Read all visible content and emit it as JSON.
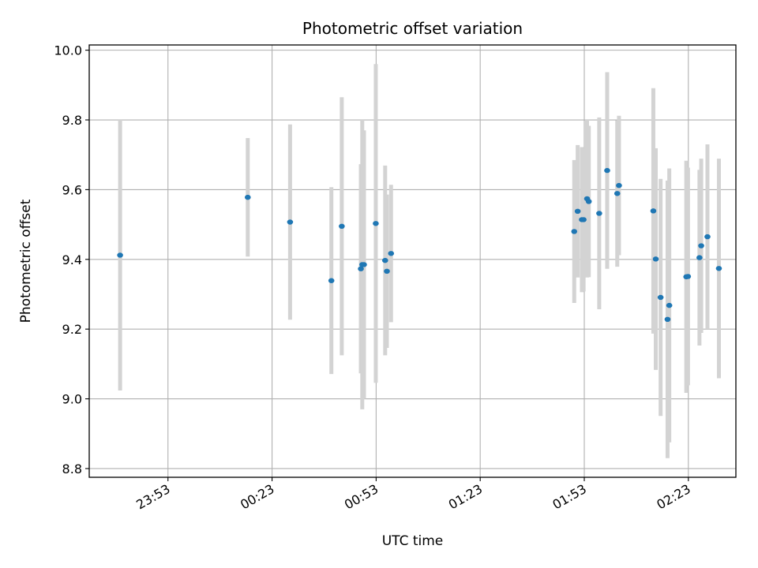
{
  "chart_data": {
    "type": "scatter",
    "title": "Photometric offset variation",
    "xlabel": "UTC time",
    "ylabel": "Photometric offset",
    "grid": true,
    "x_ticks": [
      "23:53",
      "00:23",
      "00:53",
      "01:23",
      "01:53",
      "02:23"
    ],
    "x_tick_minutes": [
      -7,
      23,
      53,
      83,
      113,
      143
    ],
    "xlim_minutes": [
      -29.7,
      156.7
    ],
    "y_ticks": [
      "8.8",
      "9.0",
      "9.2",
      "9.4",
      "9.6",
      "9.8",
      "10.0"
    ],
    "ylim": [
      8.775,
      10.015
    ],
    "colors": {
      "point": "#1f77b4",
      "errorbar": "#d3d3d3",
      "grid": "#b0b0b0"
    },
    "points": [
      {
        "t": -20.8,
        "y": 9.412,
        "yerr": 0.388
      },
      {
        "t": 16.0,
        "y": 9.578,
        "yerr": 0.17
      },
      {
        "t": 28.2,
        "y": 9.507,
        "yerr": 0.28
      },
      {
        "t": 40.1,
        "y": 9.339,
        "yerr": 0.268
      },
      {
        "t": 43.1,
        "y": 9.495,
        "yerr": 0.37
      },
      {
        "t": 48.6,
        "y": 9.373,
        "yerr": 0.3
      },
      {
        "t": 49.0,
        "y": 9.385,
        "yerr": 0.415
      },
      {
        "t": 49.5,
        "y": 9.385,
        "yerr": 0.385
      },
      {
        "t": 52.9,
        "y": 9.503,
        "yerr": 0.457
      },
      {
        "t": 55.6,
        "y": 9.397,
        "yerr": 0.272
      },
      {
        "t": 56.1,
        "y": 9.366,
        "yerr": 0.22
      },
      {
        "t": 57.3,
        "y": 9.417,
        "yerr": 0.197
      },
      {
        "t": 110.1,
        "y": 9.48,
        "yerr": 0.205
      },
      {
        "t": 111.1,
        "y": 9.538,
        "yerr": 0.19
      },
      {
        "t": 112.3,
        "y": 9.514,
        "yerr": 0.208
      },
      {
        "t": 112.8,
        "y": 9.514,
        "yerr": 0.206
      },
      {
        "t": 113.8,
        "y": 9.574,
        "yerr": 0.226
      },
      {
        "t": 114.3,
        "y": 9.566,
        "yerr": 0.217
      },
      {
        "t": 117.3,
        "y": 9.532,
        "yerr": 0.275
      },
      {
        "t": 119.6,
        "y": 9.655,
        "yerr": 0.282
      },
      {
        "t": 122.5,
        "y": 9.589,
        "yerr": 0.21
      },
      {
        "t": 123.0,
        "y": 9.612,
        "yerr": 0.2
      },
      {
        "t": 132.9,
        "y": 9.539,
        "yerr": 0.352
      },
      {
        "t": 133.6,
        "y": 9.401,
        "yerr": 0.318
      },
      {
        "t": 135.0,
        "y": 9.291,
        "yerr": 0.34
      },
      {
        "t": 137.0,
        "y": 9.228,
        "yerr": 0.398
      },
      {
        "t": 137.5,
        "y": 9.268,
        "yerr": 0.393
      },
      {
        "t": 142.4,
        "y": 9.35,
        "yerr": 0.333
      },
      {
        "t": 142.9,
        "y": 9.351,
        "yerr": 0.312
      },
      {
        "t": 146.2,
        "y": 9.405,
        "yerr": 0.252
      },
      {
        "t": 146.7,
        "y": 9.439,
        "yerr": 0.25
      },
      {
        "t": 148.5,
        "y": 9.465,
        "yerr": 0.265
      },
      {
        "t": 151.8,
        "y": 9.374,
        "yerr": 0.315
      }
    ]
  }
}
